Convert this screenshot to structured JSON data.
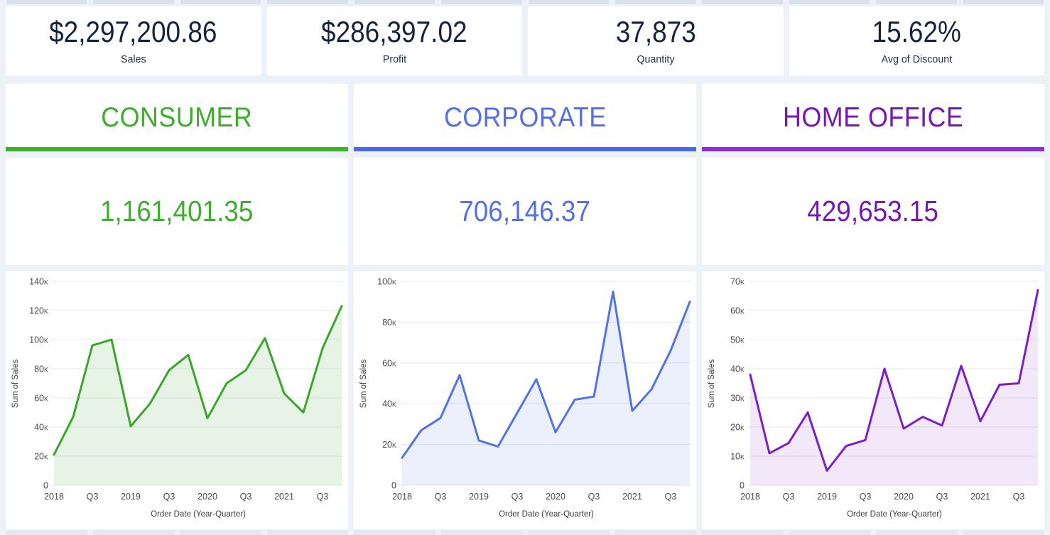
{
  "kpi_cards": [
    {
      "value": "$2,297,200.86",
      "label": "Sales"
    },
    {
      "value": "$286,397.02",
      "label": "Profit"
    },
    {
      "value": "37,873",
      "label": "Quantity"
    },
    {
      "value": "15.62%",
      "label": "Avg of Discount"
    }
  ],
  "segments": [
    {
      "name": "CONSUMER",
      "value": "1,161,401.35",
      "color": "#3cae2b",
      "underline_color": "#3cb22a"
    },
    {
      "name": "CORPORATE",
      "value": "706,146.37",
      "color": "#5570e6",
      "underline_color": "#4c68e8"
    },
    {
      "name": "HOME OFFICE",
      "value": "429,653.15",
      "color": "#7916b6",
      "underline_color": "#8a2fd4"
    }
  ],
  "colors": {
    "kpi_text": "#16233e",
    "page_background": "#edf1f8",
    "card_background": "#ffffff"
  },
  "chart_style": {
    "grid_color": "#e3e7ee",
    "tick_text_color": "#4a4a4a",
    "axis_title_color": "#404040"
  },
  "decor": {
    "top_segments": 12,
    "bottom_segments": 12
  },
  "chart_data": [
    {
      "type": "area",
      "segment": "Consumer",
      "ylabel": "Sum of Sales",
      "xlabel": "Order Date (Year-Quarter)",
      "ylim": [
        0,
        140000
      ],
      "y_ticks": [
        0,
        20000,
        40000,
        60000,
        80000,
        100000,
        120000,
        140000
      ],
      "x": [
        "2018 Q1",
        "2018 Q2",
        "2018 Q3",
        "2018 Q4",
        "2019 Q1",
        "2019 Q2",
        "2019 Q3",
        "2019 Q4",
        "2020 Q1",
        "2020 Q2",
        "2020 Q3",
        "2020 Q4",
        "2021 Q1",
        "2021 Q2",
        "2021 Q3",
        "2021 Q4"
      ],
      "x_tick_labels": [
        "2018",
        "Q3",
        "2019",
        "Q3",
        "2020",
        "Q3",
        "2021",
        "Q3"
      ],
      "values": [
        21000,
        47000,
        96000,
        100000,
        40500,
        56000,
        79000,
        89500,
        46000,
        70000,
        79000,
        101000,
        63000,
        50000,
        94000,
        123000
      ],
      "line_color": "#3aa62a",
      "fill_color": "rgba(58,166,42,0.12)"
    },
    {
      "type": "area",
      "segment": "Corporate",
      "ylabel": "Sum of Sales",
      "xlabel": "Order Date (Year-Quarter)",
      "ylim": [
        0,
        100000
      ],
      "y_ticks": [
        0,
        20000,
        40000,
        60000,
        80000,
        100000
      ],
      "x": [
        "2018 Q1",
        "2018 Q2",
        "2018 Q3",
        "2018 Q4",
        "2019 Q1",
        "2019 Q2",
        "2019 Q3",
        "2019 Q4",
        "2020 Q1",
        "2020 Q2",
        "2020 Q3",
        "2020 Q4",
        "2021 Q1",
        "2021 Q2",
        "2021 Q3",
        "2021 Q4"
      ],
      "x_tick_labels": [
        "2018",
        "Q3",
        "2019",
        "Q3",
        "2020",
        "Q3",
        "2021",
        "Q3"
      ],
      "values": [
        13500,
        27000,
        33000,
        54000,
        22000,
        19000,
        35500,
        52000,
        26000,
        42000,
        43500,
        95000,
        36500,
        47000,
        66000,
        90000
      ],
      "line_color": "#5273e4",
      "fill_color": "rgba(82,115,228,0.11)"
    },
    {
      "type": "area",
      "segment": "Home Office",
      "ylabel": "Sum of Sales",
      "xlabel": "Order Date (Year-Quarter)",
      "ylim": [
        0,
        70000
      ],
      "y_ticks": [
        0,
        10000,
        20000,
        30000,
        40000,
        50000,
        60000,
        70000
      ],
      "x": [
        "2018 Q1",
        "2018 Q2",
        "2018 Q3",
        "2018 Q4",
        "2019 Q1",
        "2019 Q2",
        "2019 Q3",
        "2019 Q4",
        "2020 Q1",
        "2020 Q2",
        "2020 Q3",
        "2020 Q4",
        "2021 Q1",
        "2021 Q2",
        "2021 Q3",
        "2021 Q4"
      ],
      "x_tick_labels": [
        "2018",
        "Q3",
        "2019",
        "Q3",
        "2020",
        "Q3",
        "2021",
        "Q3"
      ],
      "values": [
        38000,
        11000,
        14500,
        25000,
        5000,
        13500,
        15500,
        40000,
        19500,
        23500,
        20500,
        41000,
        22000,
        34500,
        35000,
        67000
      ],
      "line_color": "#7b1ec6",
      "fill_color": "rgba(123,30,198,0.10)"
    }
  ]
}
